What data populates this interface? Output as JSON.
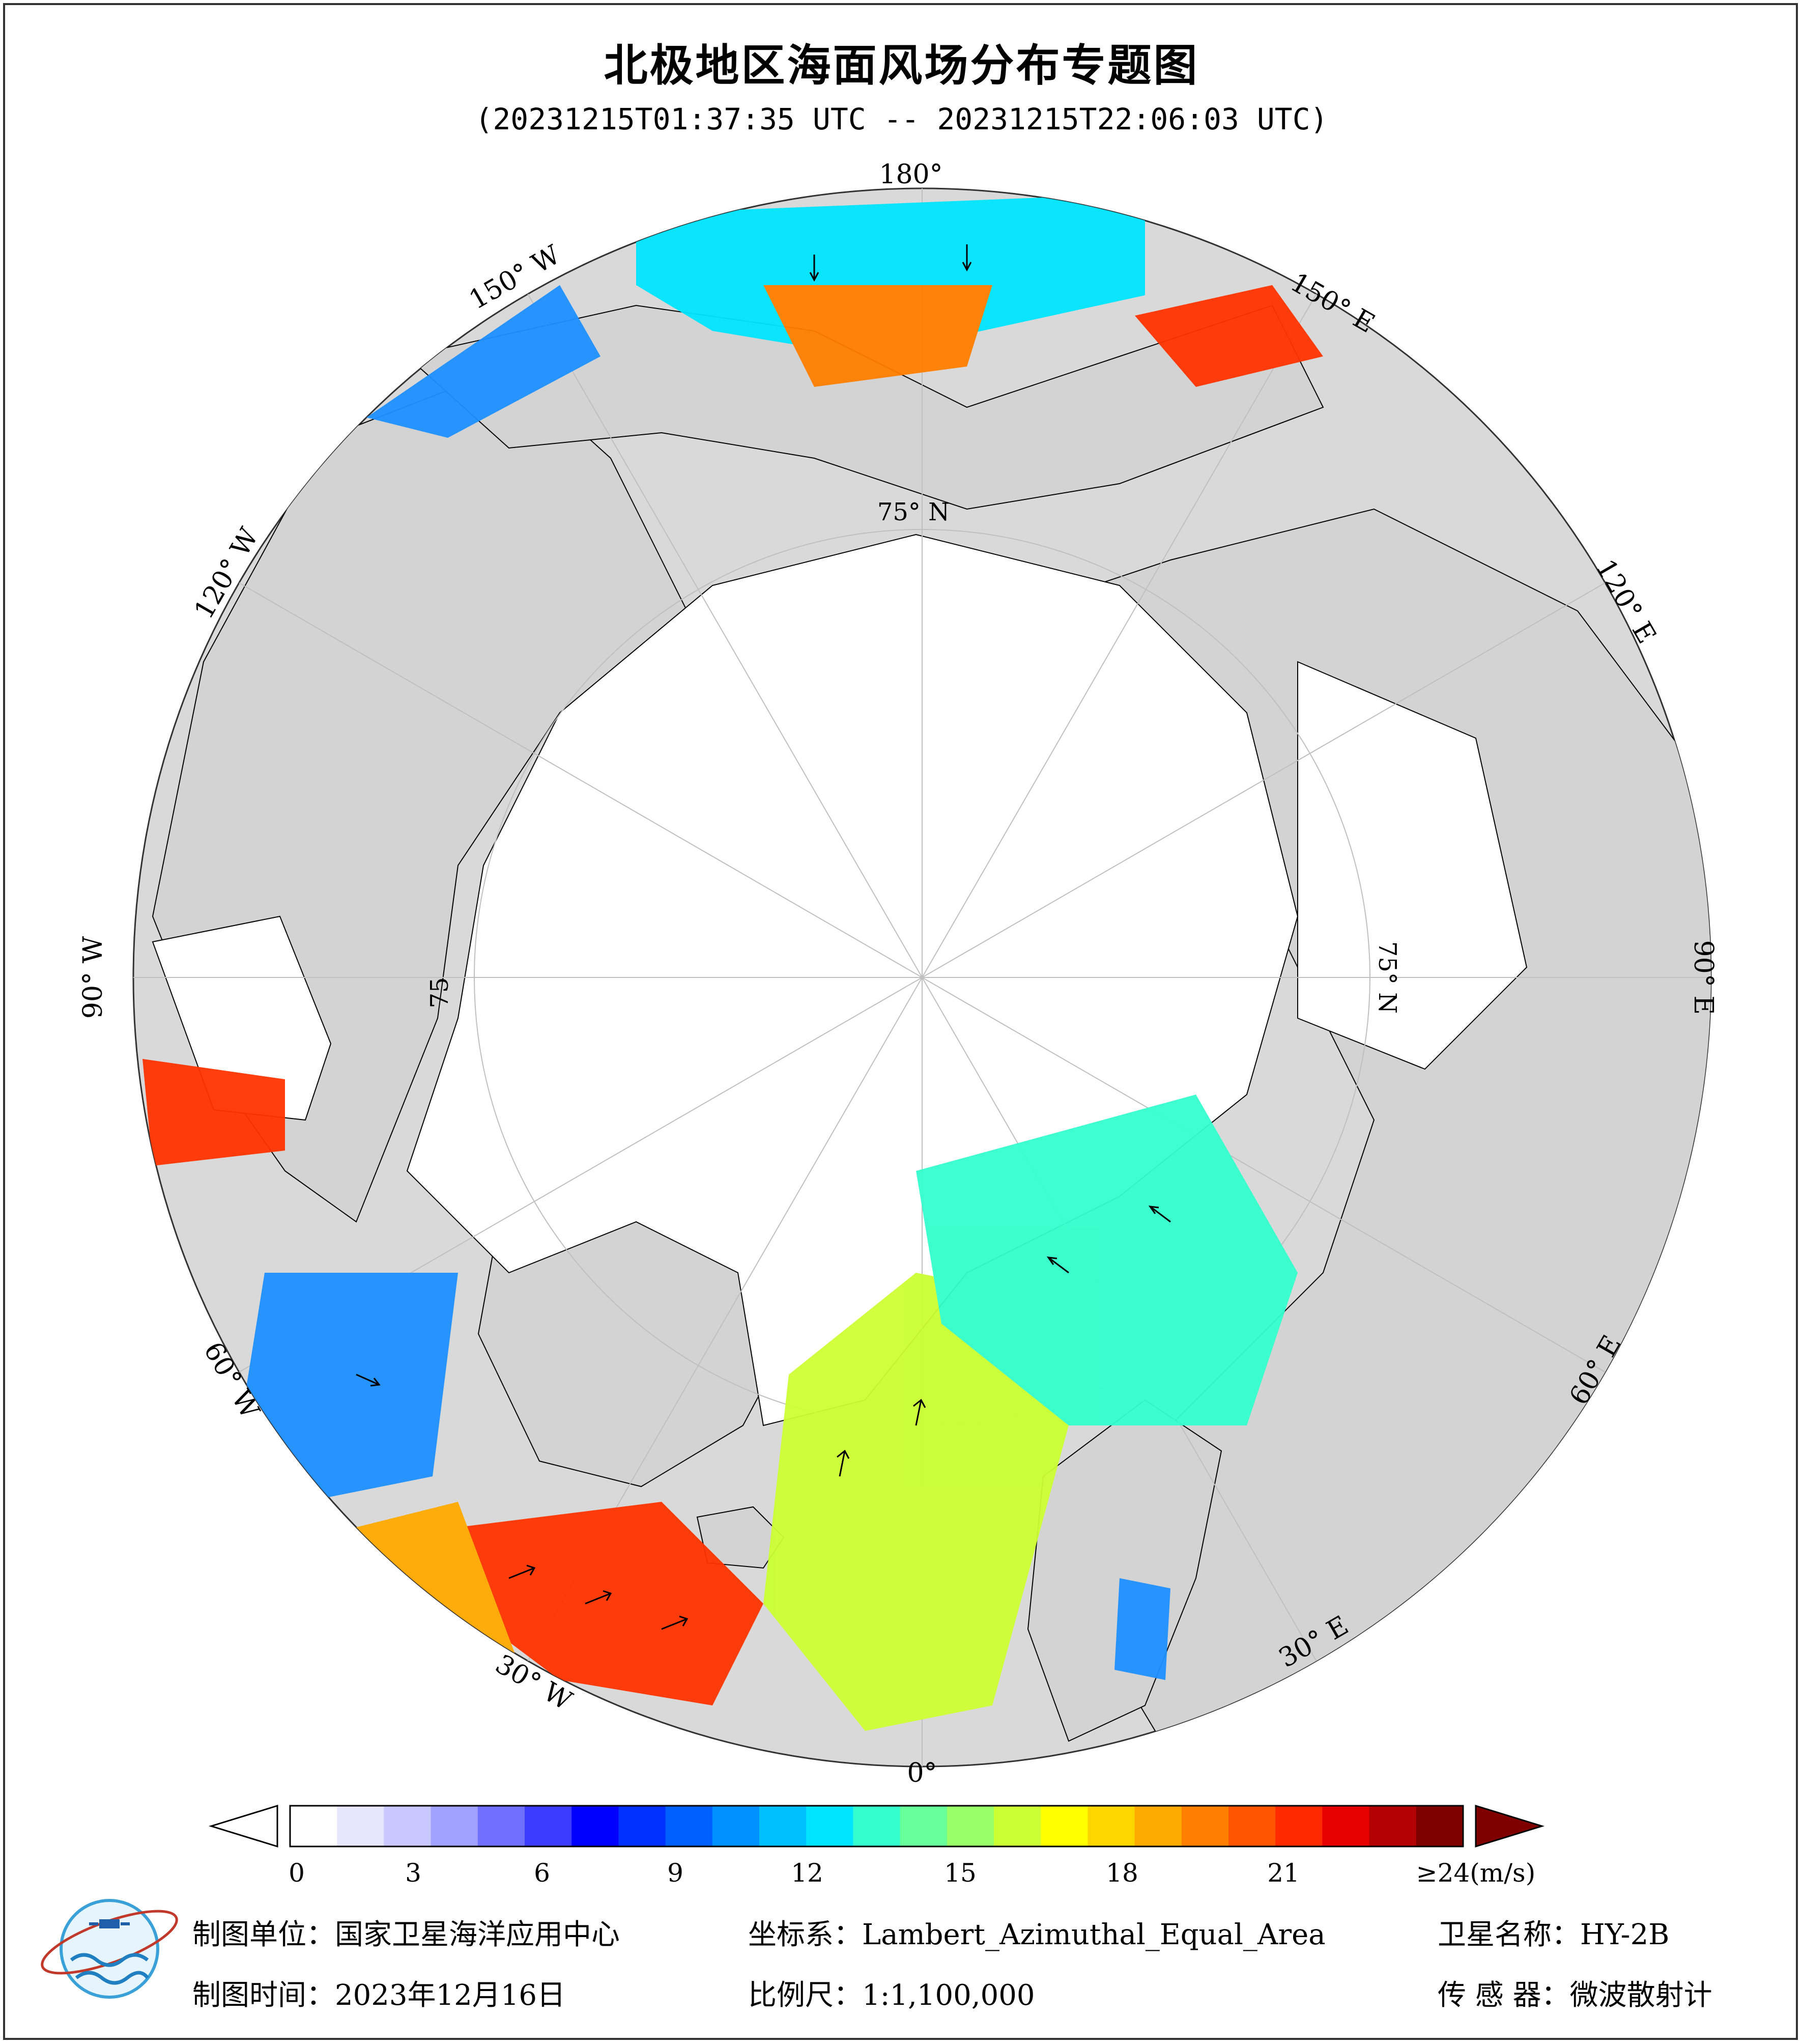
{
  "title": "北极地区海面风场分布专题图",
  "subtitle": "(20231215T01:37:35 UTC -- 20231215T22:06:03 UTC)",
  "longitude_labels": {
    "lon_180": "180°",
    "lon_150w": "150° W",
    "lon_120w": "120° W",
    "lon_90w": "90° W",
    "lon_60w": "60° W",
    "lon_30w": "30° W",
    "lon_0": "0°",
    "lon_30e": "30° E",
    "lon_60e": "60° E",
    "lon_90e": "90° E",
    "lon_120e": "120° E",
    "lon_150e": "150° E"
  },
  "latitude_labels": {
    "lat_75n_top": "75° N",
    "lat_75n_right": "75° N",
    "lat_75n_left": "75"
  },
  "colorbar": {
    "ticks": [
      "0",
      "3",
      "6",
      "9",
      "12",
      "15",
      "18",
      "21"
    ],
    "max_label": "≥24(m/s)",
    "unit": "m/s",
    "min": 0,
    "max": 24,
    "colors": [
      "#ffffff",
      "#e6e6ff",
      "#c8c8ff",
      "#a0a0ff",
      "#7070ff",
      "#3c3cff",
      "#0000ff",
      "#0030ff",
      "#0060ff",
      "#0090ff",
      "#00bfff",
      "#00e5ff",
      "#33ffcc",
      "#66ff99",
      "#99ff66",
      "#ccff33",
      "#ffff00",
      "#ffd500",
      "#ffaa00",
      "#ff7f00",
      "#ff5500",
      "#ff2a00",
      "#e60000",
      "#b30000",
      "#800000"
    ],
    "over_color": "#800000"
  },
  "map_colors": {
    "ocean": "#d9d9d9",
    "ice": "#ffffff",
    "land": "#d3d3d3"
  },
  "footer": {
    "producer_label": "制图单位：",
    "producer_value": "国家卫星海洋应用中心",
    "crs_label": "坐标系：",
    "crs_value": "Lambert_Azimuthal_Equal_Area",
    "satellite_label": "卫星名称：",
    "satellite_value": "HY-2B",
    "date_label": "制图时间：",
    "date_value": "2023年12月16日",
    "scale_label": "比例尺：",
    "scale_value": "1:1,100,000",
    "sensor_label": "传 感 器：",
    "sensor_value": "微波散射计"
  },
  "logo": {
    "name": "national-satellite-ocean-application-center-logo"
  }
}
